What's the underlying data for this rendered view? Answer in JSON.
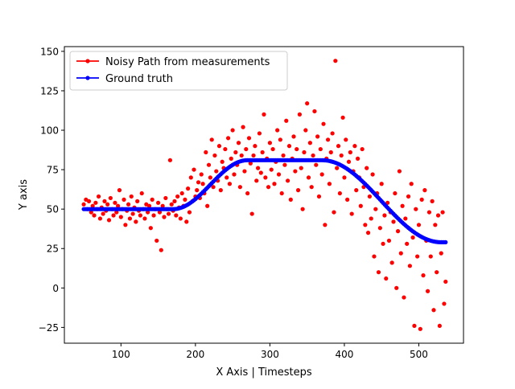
{
  "chart_data": {
    "type": "scatter",
    "title": "",
    "xlabel": "X Axis | Timesteps",
    "ylabel": "Y axis",
    "xlim": [
      24,
      560
    ],
    "ylim": [
      -35,
      153
    ],
    "xticks": [
      100,
      200,
      300,
      400,
      500
    ],
    "yticks": [
      -25,
      0,
      25,
      50,
      75,
      100,
      125,
      150
    ],
    "grid": false,
    "legend_position": "top-left",
    "series": [
      {
        "name": "Noisy Path from measurements",
        "color": "#ff0000",
        "points": [
          [
            50,
            53
          ],
          [
            53,
            56
          ],
          [
            55,
            50
          ],
          [
            57,
            55
          ],
          [
            60,
            48
          ],
          [
            62,
            52
          ],
          [
            64,
            46
          ],
          [
            66,
            54
          ],
          [
            68,
            50
          ],
          [
            70,
            58
          ],
          [
            72,
            44
          ],
          [
            74,
            51
          ],
          [
            76,
            47
          ],
          [
            78,
            55
          ],
          [
            80,
            49
          ],
          [
            82,
            53
          ],
          [
            84,
            43
          ],
          [
            86,
            57
          ],
          [
            88,
            50
          ],
          [
            90,
            46
          ],
          [
            92,
            54
          ],
          [
            94,
            48
          ],
          [
            96,
            52
          ],
          [
            98,
            62
          ],
          [
            100,
            45
          ],
          [
            102,
            50
          ],
          [
            104,
            56
          ],
          [
            106,
            40
          ],
          [
            108,
            49
          ],
          [
            110,
            53
          ],
          [
            112,
            44
          ],
          [
            114,
            58
          ],
          [
            116,
            47
          ],
          [
            118,
            51
          ],
          [
            120,
            42
          ],
          [
            122,
            55
          ],
          [
            124,
            49
          ],
          [
            126,
            46
          ],
          [
            128,
            60
          ],
          [
            130,
            50
          ],
          [
            132,
            44
          ],
          [
            134,
            53
          ],
          [
            136,
            48
          ],
          [
            138,
            52
          ],
          [
            140,
            38
          ],
          [
            142,
            56
          ],
          [
            144,
            46
          ],
          [
            146,
            50
          ],
          [
            148,
            30
          ],
          [
            150,
            54
          ],
          [
            152,
            48
          ],
          [
            154,
            24
          ],
          [
            156,
            52
          ],
          [
            158,
            45
          ],
          [
            160,
            57
          ],
          [
            162,
            50
          ],
          [
            164,
            47
          ],
          [
            166,
            81
          ],
          [
            168,
            53
          ],
          [
            170,
            49
          ],
          [
            172,
            55
          ],
          [
            174,
            46
          ],
          [
            176,
            58
          ],
          [
            178,
            51
          ],
          [
            180,
            44
          ],
          [
            182,
            60
          ],
          [
            184,
            52
          ],
          [
            186,
            56
          ],
          [
            188,
            42
          ],
          [
            190,
            63
          ],
          [
            192,
            48
          ],
          [
            194,
            70
          ],
          [
            196,
            55
          ],
          [
            198,
            75
          ],
          [
            200,
            58
          ],
          [
            202,
            62
          ],
          [
            204,
            67
          ],
          [
            206,
            57
          ],
          [
            208,
            72
          ],
          [
            210,
            66
          ],
          [
            212,
            60
          ],
          [
            214,
            86
          ],
          [
            216,
            52
          ],
          [
            218,
            78
          ],
          [
            220,
            70
          ],
          [
            222,
            94
          ],
          [
            224,
            64
          ],
          [
            226,
            84
          ],
          [
            228,
            74
          ],
          [
            230,
            68
          ],
          [
            232,
            90
          ],
          [
            234,
            62
          ],
          [
            236,
            80
          ],
          [
            238,
            76
          ],
          [
            240,
            88
          ],
          [
            242,
            70
          ],
          [
            244,
            95
          ],
          [
            246,
            66
          ],
          [
            248,
            82
          ],
          [
            250,
            100
          ],
          [
            252,
            72
          ],
          [
            254,
            86
          ],
          [
            256,
            78
          ],
          [
            258,
            92
          ],
          [
            260,
            64
          ],
          [
            262,
            84
          ],
          [
            264,
            102
          ],
          [
            266,
            74
          ],
          [
            268,
            88
          ],
          [
            270,
            60
          ],
          [
            272,
            95
          ],
          [
            274,
            79
          ],
          [
            276,
            47
          ],
          [
            278,
            84
          ],
          [
            280,
            90
          ],
          [
            282,
            68
          ],
          [
            284,
            76
          ],
          [
            286,
            98
          ],
          [
            288,
            73
          ],
          [
            290,
            86
          ],
          [
            292,
            110
          ],
          [
            294,
            70
          ],
          [
            296,
            82
          ],
          [
            298,
            64
          ],
          [
            300,
            92
          ],
          [
            302,
            75
          ],
          [
            304,
            88
          ],
          [
            306,
            66
          ],
          [
            308,
            80
          ],
          [
            310,
            100
          ],
          [
            312,
            72
          ],
          [
            314,
            94
          ],
          [
            316,
            60
          ],
          [
            318,
            84
          ],
          [
            320,
            78
          ],
          [
            322,
            106
          ],
          [
            324,
            68
          ],
          [
            326,
            90
          ],
          [
            328,
            56
          ],
          [
            330,
            82
          ],
          [
            332,
            96
          ],
          [
            334,
            74
          ],
          [
            336,
            88
          ],
          [
            338,
            62
          ],
          [
            340,
            110
          ],
          [
            342,
            76
          ],
          [
            344,
            50
          ],
          [
            346,
            86
          ],
          [
            348,
            100
          ],
          [
            350,
            117
          ],
          [
            352,
            70
          ],
          [
            354,
            92
          ],
          [
            356,
            64
          ],
          [
            358,
            84
          ],
          [
            360,
            112
          ],
          [
            362,
            78
          ],
          [
            364,
            96
          ],
          [
            366,
            58
          ],
          [
            368,
            88
          ],
          [
            370,
            72
          ],
          [
            372,
            104
          ],
          [
            374,
            40
          ],
          [
            376,
            82
          ],
          [
            378,
            94
          ],
          [
            380,
            66
          ],
          [
            382,
            86
          ],
          [
            384,
            98
          ],
          [
            386,
            48
          ],
          [
            388,
            144
          ],
          [
            390,
            76
          ],
          [
            392,
            90
          ],
          [
            394,
            60
          ],
          [
            396,
            84
          ],
          [
            398,
            108
          ],
          [
            400,
            70
          ],
          [
            402,
            94
          ],
          [
            404,
            56
          ],
          [
            406,
            80
          ],
          [
            408,
            86
          ],
          [
            410,
            47
          ],
          [
            412,
            74
          ],
          [
            414,
            90
          ],
          [
            416,
            62
          ],
          [
            418,
            82
          ],
          [
            420,
            70
          ],
          [
            422,
            52
          ],
          [
            424,
            88
          ],
          [
            426,
            64
          ],
          [
            428,
            40
          ],
          [
            430,
            76
          ],
          [
            432,
            35
          ],
          [
            434,
            58
          ],
          [
            436,
            44
          ],
          [
            438,
            72
          ],
          [
            440,
            20
          ],
          [
            442,
            50
          ],
          [
            444,
            60
          ],
          [
            446,
            10
          ],
          [
            448,
            38
          ],
          [
            450,
            66
          ],
          [
            452,
            28
          ],
          [
            454,
            46
          ],
          [
            456,
            6
          ],
          [
            458,
            54
          ],
          [
            460,
            30
          ],
          [
            462,
            48
          ],
          [
            464,
            16
          ],
          [
            466,
            42
          ],
          [
            468,
            60
          ],
          [
            470,
            0
          ],
          [
            472,
            36
          ],
          [
            474,
            74
          ],
          [
            476,
            22
          ],
          [
            478,
            52
          ],
          [
            480,
            -6
          ],
          [
            482,
            44
          ],
          [
            484,
            28
          ],
          [
            486,
            58
          ],
          [
            488,
            14
          ],
          [
            490,
            66
          ],
          [
            492,
            32
          ],
          [
            494,
            -24
          ],
          [
            496,
            50
          ],
          [
            498,
            20
          ],
          [
            500,
            40
          ],
          [
            502,
            -26
          ],
          [
            504,
            56
          ],
          [
            506,
            8
          ],
          [
            508,
            62
          ],
          [
            510,
            30
          ],
          [
            512,
            -2
          ],
          [
            514,
            48
          ],
          [
            516,
            20
          ],
          [
            518,
            55
          ],
          [
            520,
            -14
          ],
          [
            522,
            40
          ],
          [
            524,
            10
          ],
          [
            526,
            46
          ],
          [
            528,
            -24
          ],
          [
            530,
            22
          ],
          [
            532,
            48
          ],
          [
            534,
            -10
          ],
          [
            536,
            4
          ]
        ]
      },
      {
        "name": "Ground truth",
        "color": "#0000ff",
        "curve": {
          "x_start": 50,
          "x_end": 536,
          "step": 2,
          "segments": [
            {
              "from": 50,
              "to": 170,
              "y_from": 50,
              "y_to": 50
            },
            {
              "from": 170,
              "to": 270,
              "y_from": 50,
              "y_to": 81
            },
            {
              "from": 270,
              "to": 370,
              "y_from": 81,
              "y_to": 81
            },
            {
              "from": 370,
              "to": 530,
              "y_from": 81,
              "y_to": 29
            },
            {
              "from": 530,
              "to": 536,
              "y_from": 29,
              "y_to": 29
            }
          ]
        }
      }
    ]
  }
}
